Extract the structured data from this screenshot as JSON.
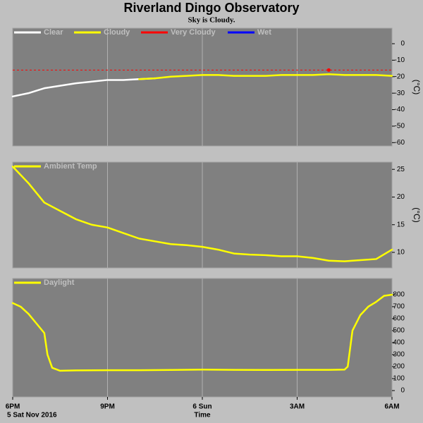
{
  "chart_data": [
    {
      "type": "line",
      "title": "Riverland Dingo Observatory",
      "subtitle": "Sky is Cloudy.",
      "ylabel": "(°C)",
      "x": [
        0,
        0.5,
        1,
        1.5,
        2,
        2.5,
        3,
        3.5,
        4,
        4.5,
        5,
        5.5,
        6,
        6.5,
        7,
        7.5,
        8,
        8.5,
        9,
        9.5,
        10,
        10.5,
        11,
        11.5,
        12
      ],
      "series": [
        {
          "name": "Clear",
          "color": "#ffffff",
          "values": [
            -32,
            -30,
            -27,
            -25.5,
            -24,
            -23,
            -22,
            -22,
            -21.5,
            -21,
            null,
            null,
            null,
            null,
            null,
            null,
            null,
            null,
            null,
            null,
            null,
            null,
            null,
            null,
            null
          ]
        },
        {
          "name": "Cloudy",
          "color": "#ffff00",
          "values": [
            null,
            null,
            null,
            null,
            null,
            null,
            null,
            null,
            -21.5,
            -21,
            -20,
            -19.5,
            -19,
            -19,
            -19.5,
            -19.5,
            -19.5,
            -19,
            -19,
            -19,
            -18.5,
            -19,
            -19,
            -19,
            -19.5
          ]
        },
        {
          "name": "Very Cloudy",
          "color": "#ff0000",
          "values": [
            null,
            null,
            null,
            null,
            null,
            null,
            null,
            null,
            null,
            null,
            null,
            null,
            null,
            null,
            null,
            null,
            null,
            null,
            null,
            null,
            -16,
            null,
            null,
            null,
            null
          ]
        },
        {
          "name": "Wet",
          "color": "#0000ff",
          "values": [
            null,
            null,
            null,
            null,
            null,
            null,
            null,
            null,
            null,
            null,
            null,
            null,
            null,
            null,
            null,
            null,
            null,
            null,
            null,
            null,
            null,
            null,
            null,
            null,
            null
          ]
        }
      ],
      "reference_line": {
        "value": -16,
        "color": "#ff0000"
      },
      "xlim": [
        0,
        12
      ],
      "xticks": [
        3,
        6,
        9
      ],
      "ylim": [
        -62,
        9.4
      ],
      "yticks": [
        0,
        -10,
        -20,
        -30,
        -40,
        -50,
        -60
      ]
    },
    {
      "type": "line",
      "ylabel": "(°C)",
      "x": [
        0,
        0.5,
        1,
        1.5,
        2,
        2.5,
        3,
        3.5,
        4,
        4.5,
        5,
        5.5,
        6,
        6.5,
        7,
        7.5,
        8,
        8.5,
        9,
        9.5,
        10,
        10.5,
        11,
        11.5,
        12
      ],
      "series": [
        {
          "name": "Ambient Temp",
          "color": "#ffff00",
          "values": [
            25.5,
            22.5,
            19,
            17.5,
            16,
            15,
            14.5,
            13.5,
            12.5,
            12,
            11.5,
            11.3,
            11,
            10.5,
            9.8,
            9.6,
            9.5,
            9.3,
            9.3,
            9,
            8.5,
            8.4,
            8.6,
            8.8,
            10.5
          ]
        }
      ],
      "xlim": [
        0,
        12
      ],
      "xticks": [
        3,
        6,
        9
      ],
      "ylim": [
        7.2,
        26.3
      ],
      "yticks": [
        25,
        20,
        15,
        10
      ]
    },
    {
      "type": "line",
      "xlabel": "Time",
      "date_label": "5 Sat Nov 2016",
      "x": [
        0,
        0.25,
        0.5,
        0.75,
        1,
        1.1,
        1.25,
        1.5,
        2,
        3,
        4,
        5,
        6,
        7,
        8,
        9,
        10,
        10.5,
        10.6,
        10.75,
        11,
        11.25,
        11.5,
        11.75,
        12
      ],
      "series": [
        {
          "name": "Daylight",
          "color": "#ffff00",
          "values": [
            730,
            700,
            640,
            560,
            480,
            300,
            190,
            165,
            168,
            170,
            170,
            172,
            175,
            173,
            172,
            173,
            173,
            175,
            200,
            500,
            630,
            700,
            740,
            790,
            800
          ]
        }
      ],
      "xlim": [
        0,
        12
      ],
      "xticks": [
        {
          "value": 0,
          "label": "6PM"
        },
        {
          "value": 3,
          "label": "9PM"
        },
        {
          "value": 6,
          "label": "6 Sun"
        },
        {
          "value": 9,
          "label": "3AM"
        },
        {
          "value": 12,
          "label": "6AM"
        }
      ],
      "ylim": [
        -53,
        935
      ],
      "yticks": [
        800,
        700,
        600,
        500,
        400,
        300,
        200,
        100,
        0
      ]
    }
  ]
}
